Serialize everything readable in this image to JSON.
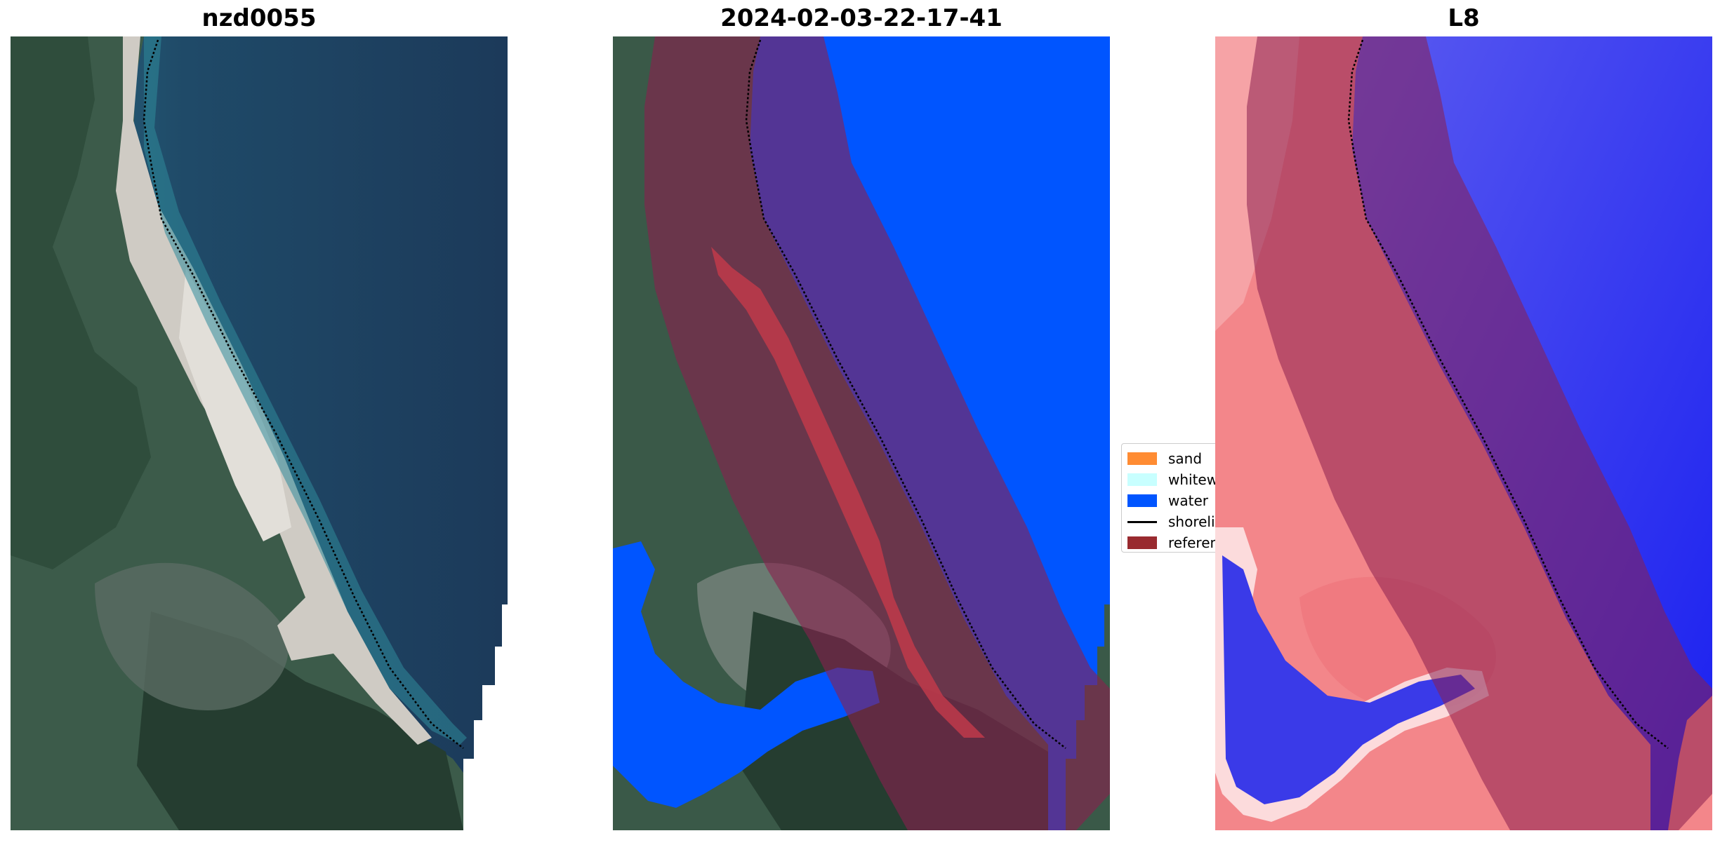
{
  "panels": [
    {
      "title": "nzd0055"
    },
    {
      "title": "2024-02-03-22-17-41"
    },
    {
      "title": "L8"
    }
  ],
  "legend": {
    "items": [
      {
        "label": "sand",
        "color": "#ff8c33"
      },
      {
        "label": "whitewater",
        "color": "#c8ffff"
      },
      {
        "label": "water",
        "color": "#0055ff"
      },
      {
        "label": "shoreline",
        "color": "#000000"
      },
      {
        "label": "reference shoreline buffer",
        "color": "#992a2f"
      }
    ]
  },
  "colors": {
    "ocean_rgb": "#1f4463",
    "land_rgb": "#3b5a48",
    "sand_rgb": "#c9c5c0",
    "water_class": "#0055ff",
    "buffer_overlay": "#8a1f4e",
    "sand_class": "#c0394a",
    "index_land": "#f4878b",
    "index_water": "#2a2cf2"
  }
}
